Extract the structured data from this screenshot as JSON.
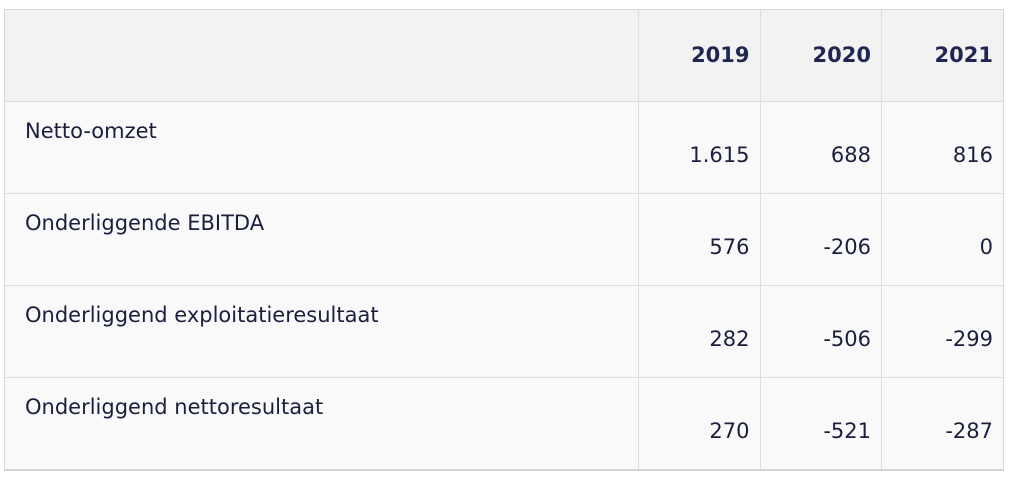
{
  "table": {
    "header": {
      "label": "",
      "years": [
        "2019",
        "2020",
        "2021"
      ]
    },
    "rows": [
      {
        "label": "Netto-omzet",
        "values": [
          "1.615",
          "688",
          "816"
        ]
      },
      {
        "label": "Onderliggende EBITDA",
        "values": [
          "576",
          "-206",
          "0"
        ]
      },
      {
        "label": "Onderliggend exploitatieresultaat",
        "values": [
          "282",
          "-506",
          "-299"
        ]
      },
      {
        "label": "Onderliggend nettoresultaat",
        "values": [
          "270",
          "-521",
          "-287"
        ]
      }
    ]
  }
}
